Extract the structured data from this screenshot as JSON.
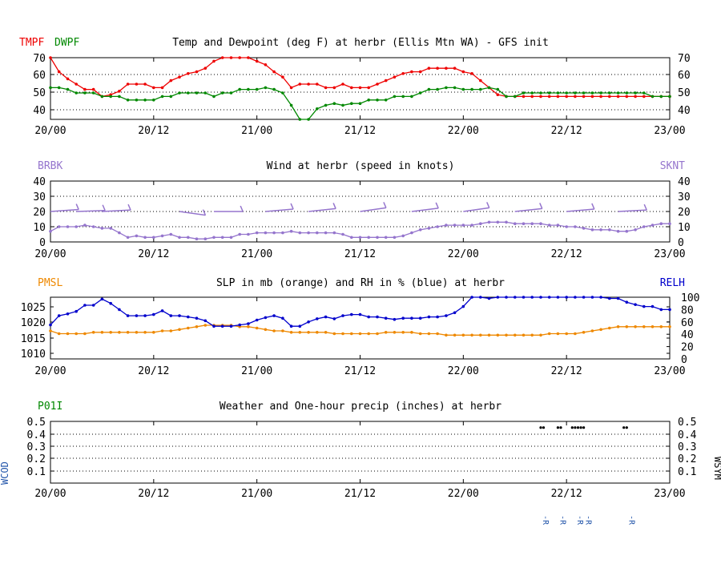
{
  "colors": {
    "temp": "#ee0000",
    "dewpoint": "#008800",
    "wind": "#9575cd",
    "slp": "#ee8800",
    "rh": "#0000cc",
    "precip_label": "#008800",
    "wcod": "#2255aa",
    "wsym": "#000000",
    "weather_code": "#2255aa"
  },
  "x_ticks": [
    "20/00",
    "20/12",
    "21/00",
    "21/12",
    "22/00",
    "22/12",
    "23/00"
  ],
  "chart_data": [
    {
      "id": "temp",
      "type": "line",
      "title": "Temp and Dewpoint (deg F) at herbr (Ellis Mtn WA) - GFS init",
      "left_label": "TMPF",
      "left_label2": "DWPF",
      "ylim": [
        35,
        70
      ],
      "y_ticks": [
        "40",
        "50",
        "60",
        "70"
      ],
      "right_y_ticks": [
        "40",
        "50",
        "60",
        "70"
      ],
      "grid": true,
      "x_hours": [
        0,
        3,
        6,
        9,
        12,
        15,
        18,
        21,
        24,
        27,
        30,
        33,
        36,
        39,
        42,
        45,
        48,
        51,
        54,
        57,
        60,
        63,
        66,
        69,
        72,
        75,
        78,
        81,
        84,
        87,
        90,
        93,
        96,
        99,
        102,
        105,
        108,
        111,
        114,
        117,
        120,
        123,
        126,
        129,
        132,
        135,
        138,
        141,
        144,
        147,
        150,
        153,
        156,
        159,
        162,
        165,
        168,
        171,
        174,
        177,
        180,
        183,
        186,
        189,
        192,
        195,
        198,
        201,
        204,
        207,
        210,
        213,
        216
      ],
      "series": [
        {
          "name": "TMPF",
          "color": "#ee0000",
          "values": [
            70,
            62,
            58,
            55,
            52,
            52,
            48,
            49,
            51,
            55,
            55,
            55,
            53,
            53,
            57,
            59,
            61,
            62,
            64,
            68,
            70,
            70,
            70,
            70,
            68,
            66,
            62,
            59,
            53,
            55,
            55,
            55,
            53,
            53,
            55,
            53,
            53,
            53,
            55,
            57,
            59,
            61,
            62,
            62,
            64,
            64,
            64,
            64,
            62,
            61,
            57,
            53,
            49,
            48,
            48,
            48,
            48,
            48,
            48,
            48,
            48,
            48,
            48,
            48,
            48,
            48,
            48,
            48,
            48,
            48,
            48,
            48,
            48
          ]
        },
        {
          "name": "DWPF",
          "color": "#008800",
          "values": [
            53,
            53,
            52,
            50,
            50,
            50,
            48,
            48,
            48,
            46,
            46,
            46,
            46,
            48,
            48,
            50,
            50,
            50,
            50,
            48,
            50,
            50,
            52,
            52,
            52,
            53,
            52,
            50,
            43,
            35,
            35,
            41,
            43,
            44,
            43,
            44,
            44,
            46,
            46,
            46,
            48,
            48,
            48,
            50,
            52,
            52,
            53,
            53,
            52,
            52,
            52,
            53,
            52,
            48,
            48,
            50,
            50,
            50,
            50,
            50,
            50,
            50,
            50,
            50,
            50,
            50,
            50,
            50,
            50,
            50,
            48,
            48,
            48
          ]
        }
      ]
    },
    {
      "id": "wind",
      "type": "line",
      "title": "Wind at  herbr (speed in knots)",
      "left_label": "BRBK",
      "right_label": "SKNT",
      "ylim": [
        0,
        40
      ],
      "y_ticks": [
        "0",
        "10",
        "20",
        "30",
        "40"
      ],
      "right_y_ticks": [
        "0",
        "10",
        "20",
        "30",
        "40"
      ],
      "grid": true,
      "x_hours": [
        0,
        3,
        6,
        9,
        12,
        15,
        18,
        21,
        24,
        27,
        30,
        33,
        36,
        39,
        42,
        45,
        48,
        51,
        54,
        57,
        60,
        63,
        66,
        69,
        72,
        75,
        78,
        81,
        84,
        87,
        90,
        93,
        96,
        99,
        102,
        105,
        108,
        111,
        114,
        117,
        120,
        123,
        126,
        129,
        132,
        135,
        138,
        141,
        144,
        147,
        150,
        153,
        156,
        159,
        162,
        165,
        168,
        171,
        174,
        177,
        180,
        183,
        186,
        189,
        192,
        195,
        198,
        201,
        204,
        207,
        210,
        213,
        216
      ],
      "series": [
        {
          "name": "SKNT",
          "color": "#9575cd",
          "values": [
            7,
            10,
            10,
            10,
            11,
            10,
            9,
            9,
            6,
            3,
            4,
            3,
            3,
            4,
            5,
            3,
            3,
            2,
            2,
            3,
            3,
            3,
            5,
            5,
            6,
            6,
            6,
            6,
            7,
            6,
            6,
            6,
            6,
            6,
            5,
            3,
            3,
            3,
            3,
            3,
            3,
            4,
            6,
            8,
            9,
            10,
            11,
            11,
            11,
            11,
            12,
            13,
            13,
            13,
            12,
            12,
            12,
            12,
            11,
            11,
            10,
            10,
            9,
            8,
            8,
            8,
            7,
            7,
            8,
            10,
            11,
            12,
            12
          ]
        }
      ],
      "barbs": [
        {
          "x": 0,
          "y": 20,
          "dir": 20
        },
        {
          "x": 9,
          "y": 20,
          "dir": 10
        },
        {
          "x": 18,
          "y": 20,
          "dir": 15
        },
        {
          "x": 45,
          "y": 20,
          "dir": -40
        },
        {
          "x": 57,
          "y": 20,
          "dir": 0
        },
        {
          "x": 75,
          "y": 20,
          "dir": 25
        },
        {
          "x": 90,
          "y": 20,
          "dir": 30
        },
        {
          "x": 108,
          "y": 20,
          "dir": 40
        },
        {
          "x": 126,
          "y": 20,
          "dir": 35
        },
        {
          "x": 144,
          "y": 20,
          "dir": 40
        },
        {
          "x": 162,
          "y": 20,
          "dir": 30
        },
        {
          "x": 180,
          "y": 20,
          "dir": 25
        },
        {
          "x": 198,
          "y": 20,
          "dir": 15
        }
      ]
    },
    {
      "id": "slp",
      "type": "line",
      "title": "SLP in mb (orange) and RH in % (blue) at  herbr",
      "left_label": "PMSL",
      "right_label": "RELH",
      "ylim": [
        1008,
        1030
      ],
      "y_ticks": [
        "1010",
        "1015",
        "1020",
        "1025"
      ],
      "right_ylim": [
        0,
        100
      ],
      "right_y_ticks": [
        "0",
        "20",
        "40",
        "60",
        "80",
        "100"
      ],
      "grid": false,
      "x_hours": [
        0,
        3,
        6,
        9,
        12,
        15,
        18,
        21,
        24,
        27,
        30,
        33,
        36,
        39,
        42,
        45,
        48,
        51,
        54,
        57,
        60,
        63,
        66,
        69,
        72,
        75,
        78,
        81,
        84,
        87,
        90,
        93,
        96,
        99,
        102,
        105,
        108,
        111,
        114,
        117,
        120,
        123,
        126,
        129,
        132,
        135,
        138,
        141,
        144,
        147,
        150,
        153,
        156,
        159,
        162,
        165,
        168,
        171,
        174,
        177,
        180,
        183,
        186,
        189,
        192,
        195,
        198,
        201,
        204,
        207,
        210,
        213,
        216
      ],
      "series": [
        {
          "name": "PMSL",
          "axis": "left",
          "color": "#ee8800",
          "values": [
            1018,
            1017,
            1017,
            1017,
            1017,
            1017.5,
            1017.5,
            1017.5,
            1017.5,
            1017.5,
            1017.5,
            1017.5,
            1017.5,
            1018,
            1018,
            1018.5,
            1019,
            1019.5,
            1020,
            1020,
            1020,
            1020,
            1019.5,
            1019.5,
            1019,
            1018.5,
            1018,
            1018,
            1017.5,
            1017.5,
            1017.5,
            1017.5,
            1017.5,
            1017,
            1017,
            1017,
            1017,
            1017,
            1017,
            1017.5,
            1017.5,
            1017.5,
            1017.5,
            1017,
            1017,
            1017,
            1016.5,
            1016.5,
            1016.5,
            1016.5,
            1016.5,
            1016.5,
            1016.5,
            1016.5,
            1016.5,
            1016.5,
            1016.5,
            1016.5,
            1017,
            1017,
            1017,
            1017,
            1017.5,
            1018,
            1018.5,
            1019,
            1019.5,
            1019.5,
            1019.5,
            1019.5,
            1019.5,
            1019.5,
            1019.5
          ]
        },
        {
          "name": "RELH",
          "axis": "right",
          "color": "#0000cc",
          "values": [
            55,
            70,
            73,
            77,
            87,
            87,
            97,
            90,
            80,
            70,
            70,
            70,
            72,
            78,
            70,
            70,
            68,
            66,
            62,
            53,
            53,
            53,
            55,
            57,
            63,
            67,
            70,
            66,
            53,
            53,
            60,
            65,
            68,
            65,
            70,
            72,
            72,
            68,
            68,
            66,
            64,
            66,
            66,
            66,
            68,
            68,
            70,
            75,
            85,
            100,
            100,
            98,
            100,
            100,
            100,
            100,
            100,
            100,
            100,
            100,
            100,
            100,
            100,
            100,
            100,
            98,
            98,
            92,
            88,
            85,
            85,
            80,
            80
          ]
        }
      ]
    },
    {
      "id": "precip",
      "type": "scatter",
      "title": "Weather and One-hour precip (inches) at  herbr",
      "left_label": "P01I",
      "left_vertical_label": "WCOD",
      "right_vertical_label": "WSYM",
      "ylim": [
        0,
        0.5
      ],
      "y_ticks": [
        "0.1",
        "0.2",
        "0.3",
        "0.4",
        "0.5"
      ],
      "right_y_ticks": [
        "0.1",
        "0.2",
        "0.3",
        "0.4",
        "0.5"
      ],
      "grid": true,
      "points": [
        {
          "x": 171,
          "y": 0.45
        },
        {
          "x": 172,
          "y": 0.45
        },
        {
          "x": 177,
          "y": 0.45
        },
        {
          "x": 178,
          "y": 0.45
        },
        {
          "x": 182,
          "y": 0.45
        },
        {
          "x": 183,
          "y": 0.45
        },
        {
          "x": 184,
          "y": 0.45
        },
        {
          "x": 185,
          "y": 0.45
        },
        {
          "x": 186,
          "y": 0.45
        },
        {
          "x": 200,
          "y": 0.45
        },
        {
          "x": 201,
          "y": 0.45
        }
      ],
      "weather_codes": [
        {
          "x": 171,
          "code": "-R"
        },
        {
          "x": 177,
          "code": "-R"
        },
        {
          "x": 183,
          "code": "-R"
        },
        {
          "x": 186,
          "code": "-R"
        },
        {
          "x": 201,
          "code": "-R"
        }
      ]
    }
  ]
}
